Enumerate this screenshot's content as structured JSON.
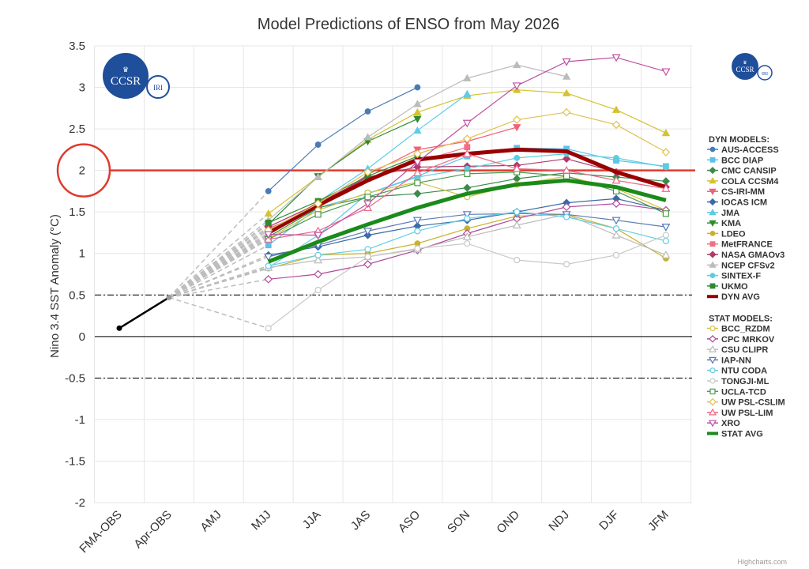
{
  "chart_data": {
    "type": "line",
    "title": "Model Predictions of ENSO from May 2026",
    "ylabel": "Nino 3.4 SST Anomaly (°C)",
    "xlabel": "",
    "ylim": [
      -2,
      3.5
    ],
    "yticks": [
      "3.5",
      "3",
      "2.5",
      "2",
      "1.5",
      "1",
      "0.5",
      "0",
      "-0.5",
      "-1",
      "-1.5",
      "-2"
    ],
    "ytick_values": [
      3.5,
      3,
      2.5,
      2,
      1.5,
      1,
      0.5,
      0,
      -0.5,
      -1,
      -1.5,
      -2
    ],
    "categories": [
      "FMA-OBS",
      "Apr-OBS",
      "AMJ",
      "MJJ",
      "JJA",
      "JAS",
      "ASO",
      "SON",
      "OND",
      "NDJ",
      "DJF",
      "JFM"
    ],
    "grid": true,
    "legend_position": "right",
    "reference_lines": [
      {
        "value": 0.5,
        "style": "dash-dot"
      },
      {
        "value": -0.5,
        "style": "dash-dot"
      },
      {
        "value": 0,
        "style": "solid"
      },
      {
        "value": 2,
        "style": "solid-red-highlight"
      }
    ],
    "observed": {
      "x": [
        "FMA-OBS",
        "Apr-OBS"
      ],
      "values": [
        0.1,
        0.47
      ]
    },
    "dyn_header": "DYN MODELS:",
    "stat_header": "STAT MODELS:",
    "dyn_series": [
      {
        "name": "AUS-ACCESS",
        "color": "#4a7bb5",
        "marker": "circle",
        "values": [
          null,
          null,
          null,
          1.75,
          2.31,
          2.71,
          3.0,
          null,
          null,
          null,
          null,
          null
        ]
      },
      {
        "name": "BCC DIAP",
        "color": "#5bc2ec",
        "marker": "square",
        "values": [
          null,
          null,
          null,
          1.1,
          1.55,
          1.72,
          1.93,
          2.17,
          2.27,
          2.26,
          2.12,
          2.05
        ]
      },
      {
        "name": "CMC CANSIP",
        "color": "#3a8b4a",
        "marker": "diamond",
        "values": [
          null,
          null,
          null,
          1.2,
          1.55,
          1.68,
          1.72,
          1.79,
          1.9,
          1.97,
          1.92,
          1.87
        ]
      },
      {
        "name": "COLA CCSM4",
        "color": "#d4c232",
        "marker": "triangle",
        "values": [
          null,
          null,
          null,
          1.48,
          1.92,
          2.37,
          2.7,
          2.9,
          2.97,
          2.93,
          2.73,
          2.45
        ]
      },
      {
        "name": "CS-IRI-MM",
        "color": "#f0607a",
        "marker": "triangle-down",
        "values": [
          null,
          null,
          null,
          1.3,
          1.55,
          1.95,
          2.25,
          2.35,
          2.52,
          null,
          null,
          null
        ]
      },
      {
        "name": "IOCAS ICM",
        "color": "#3a6aa8",
        "marker": "diamond",
        "values": [
          null,
          null,
          null,
          0.98,
          1.08,
          1.22,
          1.33,
          1.4,
          1.5,
          1.61,
          1.66,
          1.52
        ]
      },
      {
        "name": "JMA",
        "color": "#5fcbe8",
        "marker": "triangle",
        "values": [
          null,
          null,
          null,
          1.22,
          1.62,
          2.02,
          2.48,
          2.92,
          null,
          null,
          null,
          null
        ]
      },
      {
        "name": "KMA",
        "color": "#2f8a2f",
        "marker": "triangle-down",
        "values": [
          null,
          null,
          null,
          1.35,
          1.93,
          2.35,
          2.62,
          null,
          null,
          null,
          null,
          null
        ]
      },
      {
        "name": "LDEO",
        "color": "#c8b22e",
        "marker": "circle",
        "values": [
          null,
          null,
          null,
          0.82,
          0.98,
          1.0,
          1.12,
          1.3,
          1.45,
          1.47,
          1.3,
          0.94
        ]
      },
      {
        "name": "MetFRANCE",
        "color": "#f07080",
        "marker": "square",
        "values": [
          null,
          null,
          null,
          1.25,
          1.62,
          1.9,
          2.1,
          2.28,
          null,
          null,
          null,
          null
        ]
      },
      {
        "name": "NASA GMAOv3",
        "color": "#b03a6a",
        "marker": "diamond",
        "values": [
          null,
          null,
          null,
          1.32,
          1.6,
          1.92,
          2.04,
          2.05,
          2.06,
          2.14,
          1.98,
          1.8
        ]
      },
      {
        "name": "NCEP CFSv2",
        "color": "#bbbbbb",
        "marker": "triangle",
        "values": [
          null,
          null,
          null,
          1.4,
          1.92,
          2.4,
          2.8,
          3.11,
          3.27,
          3.13,
          null,
          null
        ]
      },
      {
        "name": "SINTEX-F",
        "color": "#5ccde0",
        "marker": "circle",
        "values": [
          null,
          null,
          null,
          0.83,
          1.22,
          1.72,
          1.92,
          2.02,
          2.15,
          2.2,
          2.15,
          2.04
        ]
      },
      {
        "name": "UKMO",
        "color": "#2f8a2f",
        "marker": "square",
        "values": [
          null,
          null,
          null,
          1.37,
          1.63,
          1.93,
          2.17,
          null,
          null,
          null,
          null,
          null
        ]
      },
      {
        "name": "DYN AVG",
        "color": "#990000",
        "marker": "none",
        "thick": true,
        "values": [
          null,
          null,
          null,
          1.25,
          1.58,
          1.88,
          2.13,
          2.2,
          2.25,
          2.23,
          1.98,
          1.8
        ]
      }
    ],
    "stat_series": [
      {
        "name": "BCC_RZDM",
        "color": "#d8c040",
        "marker": "circle-open",
        "values": [
          null,
          null,
          null,
          1.18,
          1.52,
          1.73,
          1.86,
          1.68,
          1.83,
          1.93,
          1.78,
          1.52
        ]
      },
      {
        "name": "CPC MRKOV",
        "color": "#b04a9a",
        "marker": "diamond-open",
        "values": [
          null,
          null,
          null,
          0.69,
          0.75,
          0.87,
          1.04,
          1.24,
          1.42,
          1.56,
          1.6,
          1.52
        ]
      },
      {
        "name": "CSU CLIPR",
        "color": "#bbbbbb",
        "marker": "triangle-open",
        "values": [
          null,
          null,
          null,
          0.83,
          0.92,
          0.96,
          1.05,
          1.2,
          1.34,
          1.47,
          1.22,
          0.98
        ]
      },
      {
        "name": "IAP-NN",
        "color": "#5a7ab8",
        "marker": "triangle-down-open",
        "values": [
          null,
          null,
          null,
          0.96,
          1.1,
          1.27,
          1.4,
          1.47,
          1.48,
          1.47,
          1.4,
          1.32
        ]
      },
      {
        "name": "NTU CODA",
        "color": "#60cde8",
        "marker": "circle-open",
        "values": [
          null,
          null,
          null,
          0.85,
          0.98,
          1.05,
          1.27,
          1.42,
          1.5,
          1.44,
          1.3,
          1.15
        ]
      },
      {
        "name": "TONGJI-ML",
        "color": "#c8c8c8",
        "marker": "circle-open",
        "values": [
          null,
          null,
          null,
          0.1,
          0.56,
          0.96,
          1.06,
          1.12,
          0.92,
          0.87,
          0.98,
          1.22
        ]
      },
      {
        "name": "UCLA-TCD",
        "color": "#4a9a4a",
        "marker": "square-open",
        "values": [
          null,
          null,
          null,
          1.17,
          1.47,
          1.68,
          1.85,
          1.96,
          1.98,
          1.93,
          1.75,
          1.48
        ]
      },
      {
        "name": "UW PSL-CSLIM",
        "color": "#e0c050",
        "marker": "diamond-open",
        "values": [
          null,
          null,
          null,
          1.28,
          1.6,
          1.98,
          2.2,
          2.38,
          2.61,
          2.7,
          2.55,
          2.22
        ]
      },
      {
        "name": "UW PSL-LIM",
        "color": "#e86a8a",
        "marker": "triangle-open",
        "values": [
          null,
          null,
          null,
          1.17,
          1.27,
          1.55,
          1.97,
          2.2,
          2.02,
          2.0,
          1.88,
          1.78
        ]
      },
      {
        "name": "XRO",
        "color": "#c050a0",
        "marker": "triangle-down-open",
        "values": [
          null,
          null,
          null,
          1.23,
          1.22,
          1.6,
          2.1,
          2.57,
          3.02,
          3.31,
          3.36,
          3.19
        ]
      },
      {
        "name": "STAT AVG",
        "color": "#1a8a1a",
        "marker": "none",
        "thick": true,
        "values": [
          null,
          null,
          null,
          0.9,
          1.14,
          1.35,
          1.55,
          1.72,
          1.83,
          1.88,
          1.8,
          1.64
        ]
      }
    ]
  },
  "logo_main": "CCSR",
  "logo_sub": "IRI",
  "credit": "Highcharts.com"
}
